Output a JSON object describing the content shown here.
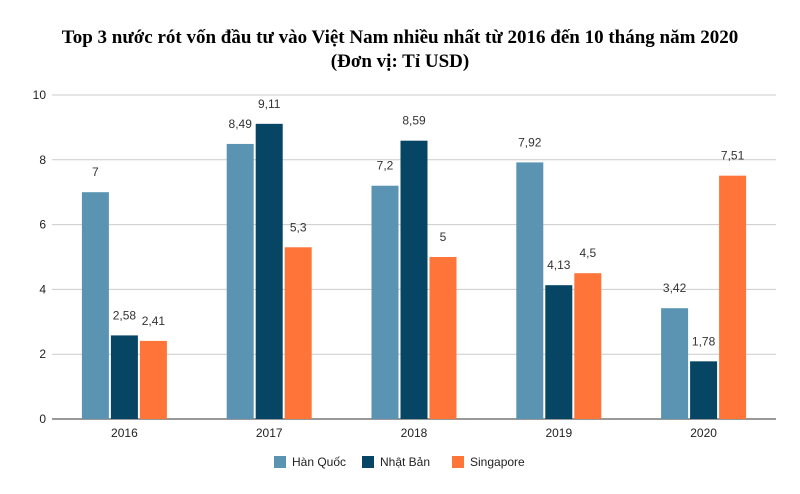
{
  "chart_data": {
    "type": "bar",
    "title": "Top 3 nước rót vốn đầu tư vào Việt Nam nhiều nhất từ 2016 đến 10 tháng năm 2020",
    "subtitle": "(Đơn vị: Tỉ USD)",
    "xlabel": "",
    "ylabel": "",
    "categories": [
      "2016",
      "2017",
      "2018",
      "2019",
      "2020"
    ],
    "series": [
      {
        "name": "Hàn Quốc",
        "color": "#5b93b2",
        "values": [
          7,
          8.49,
          7.2,
          7.92,
          3.42
        ],
        "labels": [
          "7",
          "8,49",
          "7,2",
          "7,92",
          "3,42"
        ]
      },
      {
        "name": "Nhật Bản",
        "color": "#064564",
        "values": [
          2.58,
          9.11,
          8.59,
          4.13,
          1.78
        ],
        "labels": [
          "2,58",
          "9,11",
          "8,59",
          "4,13",
          "1,78"
        ]
      },
      {
        "name": "Singapore",
        "color": "#ff7438",
        "values": [
          2.41,
          5.3,
          5,
          4.5,
          7.51
        ],
        "labels": [
          "2,41",
          "5,3",
          "5",
          "4,5",
          "7,51"
        ]
      }
    ],
    "ylim": [
      0,
      10
    ],
    "yticks": [
      0,
      2,
      4,
      6,
      8,
      10
    ],
    "grid": true,
    "legend": "bottom-center"
  }
}
